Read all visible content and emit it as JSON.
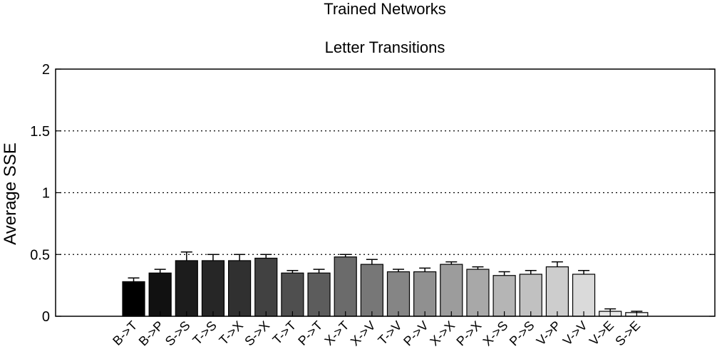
{
  "chart_data": {
    "type": "bar",
    "title": "Letter Transitions",
    "supertitle": "Trained Networks",
    "xlabel": "",
    "ylabel": "Average SSE",
    "ylim": [
      0,
      2
    ],
    "yticks": [
      "0",
      "0.5",
      "1",
      "1.5",
      "2"
    ],
    "grid": "horizontal dotted at 0.5, 1, 1.5",
    "categories": [
      "B->T",
      "B->P",
      "S->S",
      "T->S",
      "T->X",
      "S->X",
      "T->T",
      "P->T",
      "X->T",
      "X->V",
      "T->V",
      "P->V",
      "X->X",
      "P->X",
      "X->S",
      "P->S",
      "V->P",
      "V->V",
      "V->E",
      "S->E"
    ],
    "values": [
      0.28,
      0.35,
      0.45,
      0.45,
      0.45,
      0.47,
      0.35,
      0.35,
      0.48,
      0.42,
      0.36,
      0.36,
      0.42,
      0.38,
      0.33,
      0.34,
      0.4,
      0.34,
      0.04,
      0.03
    ],
    "errors": [
      0.03,
      0.03,
      0.07,
      0.05,
      0.05,
      0.03,
      0.02,
      0.03,
      0.02,
      0.04,
      0.02,
      0.03,
      0.02,
      0.02,
      0.03,
      0.03,
      0.04,
      0.03,
      0.02,
      0.01
    ],
    "colors": [
      "#000000",
      "#111111",
      "#1c1c1c",
      "#262626",
      "#303030",
      "#414141",
      "#4f4f4f",
      "#5c5c5c",
      "#6b6b6b",
      "#777777",
      "#858585",
      "#909090",
      "#9c9c9c",
      "#a8a8a8",
      "#b5b5b5",
      "#c1c1c1",
      "#cdcdcd",
      "#dadada",
      "#e7e7e7",
      "#f2f2f2"
    ]
  }
}
